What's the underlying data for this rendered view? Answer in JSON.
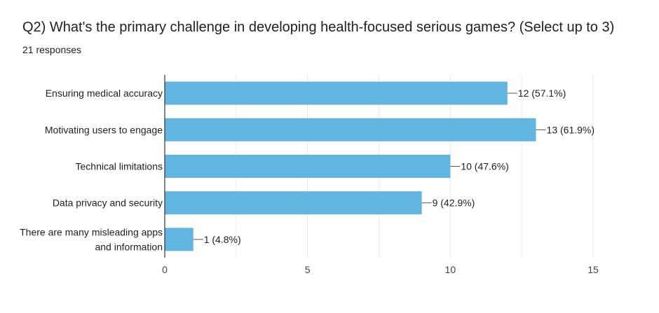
{
  "title": "Q2) What's the primary challenge in developing health-focused serious games?   (Select up to 3)",
  "response_count": "21 responses",
  "colors": {
    "bar": "#62b5e0",
    "grid": "#e6e6e6",
    "axis": "#333333",
    "text": "#202124"
  },
  "chart_data": {
    "type": "bar",
    "orientation": "horizontal",
    "categories": [
      [
        "Ensuring medical accuracy"
      ],
      [
        "Motivating users to engage"
      ],
      [
        "Technical limitations"
      ],
      [
        "Data privacy and security"
      ],
      [
        "There are many misleading apps",
        "and information"
      ]
    ],
    "values": [
      12,
      13,
      10,
      9,
      1
    ],
    "value_labels": [
      "12 (57.1%)",
      "13 (61.9%)",
      "10 (47.6%)",
      "9 (42.9%)",
      "1 (4.8%)"
    ],
    "xlim": [
      0,
      15
    ],
    "xticks": [
      0,
      5,
      10,
      15
    ],
    "grid": true
  }
}
